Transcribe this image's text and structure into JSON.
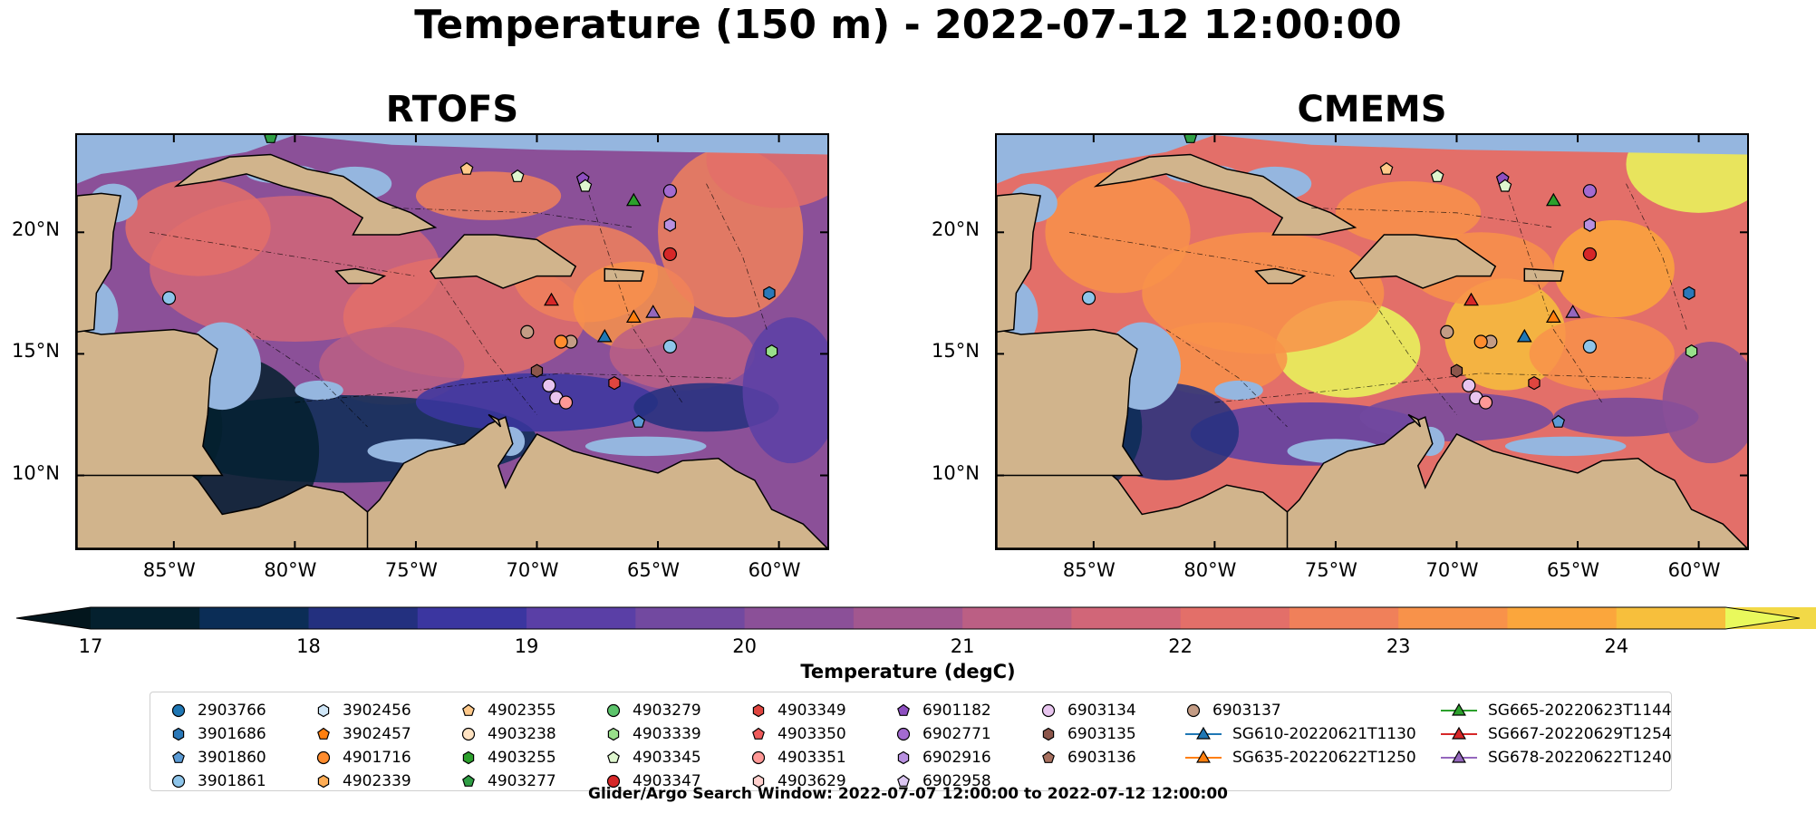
{
  "title": "Temperature (150 m) - 2022-07-12 12:00:00",
  "chart_data": [
    {
      "type": "heatmap",
      "panel_title": "RTOFS",
      "variable": "Temperature",
      "depth": "150 m",
      "xlim": [
        -89,
        -58
      ],
      "ylim": [
        7,
        24
      ],
      "xticks": [
        "85°W",
        "80°W",
        "75°W",
        "70°W",
        "65°W",
        "60°W"
      ],
      "yticks": [
        "20°N",
        "15°N",
        "10°N"
      ],
      "field_summary": "cooler (17-18 degC) in southern Caribbean along Venezuela/Colombia coast and NW Caribbean; 21-23 degC in northern and eastern basin",
      "markers": [
        {
          "id": "3901861",
          "lon": -85.2,
          "lat": 17.3
        },
        {
          "id": "6903137",
          "lon": -70.4,
          "lat": 15.9
        },
        {
          "id": "6903137",
          "lon": -68.6,
          "lat": 15.5
        },
        {
          "id": "4901716",
          "lon": -69.0,
          "lat": 15.5
        },
        {
          "id": "6903135",
          "lon": -70.0,
          "lat": 14.3
        },
        {
          "id": "6903134",
          "lon": -69.5,
          "lat": 13.7
        },
        {
          "id": "6903134",
          "lon": -69.2,
          "lat": 13.2
        },
        {
          "id": "4903351",
          "lon": -68.8,
          "lat": 13.0
        },
        {
          "id": "4903349",
          "lon": -66.8,
          "lat": 13.8
        },
        {
          "id": "3901860",
          "lon": -65.8,
          "lat": 12.2
        },
        {
          "id": "4903347",
          "lon": -64.5,
          "lat": 19.1
        },
        {
          "id": "6902771",
          "lon": -64.5,
          "lat": 21.7
        },
        {
          "id": "6902916",
          "lon": -64.5,
          "lat": 20.3
        },
        {
          "id": "3901861",
          "lon": -64.5,
          "lat": 15.3
        },
        {
          "id": "3901686",
          "lon": -60.4,
          "lat": 17.5
        },
        {
          "id": "4903339",
          "lon": -60.3,
          "lat": 15.1
        },
        {
          "id": "6901182",
          "lon": -68.1,
          "lat": 22.2
        },
        {
          "id": "4903345",
          "lon": -68.0,
          "lat": 21.9
        },
        {
          "id": "4902355",
          "lon": -72.9,
          "lat": 22.6
        },
        {
          "id": "4903345",
          "lon": -70.8,
          "lat": 22.3
        },
        {
          "id": "4903277",
          "lon": -81.0,
          "lat": 23.9
        },
        {
          "id": "SG665-20220623T1144",
          "lon": -66.0,
          "lat": 21.3
        },
        {
          "id": "SG667-20220629T1254",
          "lon": -69.4,
          "lat": 17.2
        },
        {
          "id": "SG610-20220621T1130",
          "lon": -67.2,
          "lat": 15.7
        },
        {
          "id": "SG635-20220622T1250",
          "lon": -66.0,
          "lat": 16.5
        },
        {
          "id": "SG678-20220622T1240",
          "lon": -65.2,
          "lat": 16.7
        }
      ]
    },
    {
      "type": "heatmap",
      "panel_title": "CMEMS",
      "variable": "Temperature",
      "depth": "150 m",
      "xlim": [
        -89,
        -58
      ],
      "ylim": [
        7,
        24
      ],
      "xticks": [
        "85°W",
        "80°W",
        "75°W",
        "70°W",
        "65°W",
        "60°W"
      ],
      "yticks": [
        "20°N",
        "15°N",
        "10°N"
      ],
      "field_summary": "warmer overall: 22-24+ degC across central and northern basin with >24 degC cells near 72W 15N and 58W 22N; 17-19 degC band along South American coast",
      "markers": [
        {
          "id": "3901861",
          "lon": -85.2,
          "lat": 17.3
        },
        {
          "id": "6903137",
          "lon": -70.4,
          "lat": 15.9
        },
        {
          "id": "6903137",
          "lon": -68.6,
          "lat": 15.5
        },
        {
          "id": "4901716",
          "lon": -69.0,
          "lat": 15.5
        },
        {
          "id": "6903135",
          "lon": -70.0,
          "lat": 14.3
        },
        {
          "id": "6903134",
          "lon": -69.5,
          "lat": 13.7
        },
        {
          "id": "6903134",
          "lon": -69.2,
          "lat": 13.2
        },
        {
          "id": "4903351",
          "lon": -68.8,
          "lat": 13.0
        },
        {
          "id": "4903349",
          "lon": -66.8,
          "lat": 13.8
        },
        {
          "id": "3901860",
          "lon": -65.8,
          "lat": 12.2
        },
        {
          "id": "4903347",
          "lon": -64.5,
          "lat": 19.1
        },
        {
          "id": "6902771",
          "lon": -64.5,
          "lat": 21.7
        },
        {
          "id": "6902916",
          "lon": -64.5,
          "lat": 20.3
        },
        {
          "id": "3901861",
          "lon": -64.5,
          "lat": 15.3
        },
        {
          "id": "3901686",
          "lon": -60.4,
          "lat": 17.5
        },
        {
          "id": "4903339",
          "lon": -60.3,
          "lat": 15.1
        },
        {
          "id": "6901182",
          "lon": -68.1,
          "lat": 22.2
        },
        {
          "id": "4903345",
          "lon": -68.0,
          "lat": 21.9
        },
        {
          "id": "4902355",
          "lon": -72.9,
          "lat": 22.6
        },
        {
          "id": "4903345",
          "lon": -70.8,
          "lat": 22.3
        },
        {
          "id": "4903277",
          "lon": -81.0,
          "lat": 23.9
        },
        {
          "id": "SG665-20220623T1144",
          "lon": -66.0,
          "lat": 21.3
        },
        {
          "id": "SG667-20220629T1254",
          "lon": -69.4,
          "lat": 17.2
        },
        {
          "id": "SG610-20220621T1130",
          "lon": -67.2,
          "lat": 15.7
        },
        {
          "id": "SG635-20220622T1250",
          "lon": -66.0,
          "lat": 16.5
        },
        {
          "id": "SG678-20220622T1240",
          "lon": -65.2,
          "lat": 16.7
        }
      ]
    }
  ],
  "colorbar": {
    "label": "Temperature (degC)",
    "min": 17,
    "max": 24.5,
    "step": 0.5,
    "ticks": [
      17,
      18,
      19,
      20,
      21,
      22,
      23,
      24
    ],
    "extend": "both",
    "colormap": "thermal",
    "colors": [
      "#04202e",
      "#0b2d56",
      "#23307f",
      "#3b36a0",
      "#5a3fa6",
      "#7249a0",
      "#8b5098",
      "#a2578f",
      "#bb5f84",
      "#d16678",
      "#e36f69",
      "#f0805a",
      "#f8924a",
      "#fba63c",
      "#f7bf3c",
      "#f2d947"
    ],
    "under_color": "#03161d",
    "over_color": "#e9f95c"
  },
  "legend": {
    "columns": [
      [
        {
          "label": "2903766",
          "marker": "circle",
          "color": "#1f77b4"
        },
        {
          "label": "3901686",
          "marker": "hexagon",
          "color": "#2a78b8"
        },
        {
          "label": "3901860",
          "marker": "pentagon",
          "color": "#5b9bd5"
        },
        {
          "label": "3901861",
          "marker": "circle",
          "color": "#8ec5ea"
        }
      ],
      [
        {
          "label": "3902456",
          "marker": "hexagon",
          "color": "#cfe6f7"
        },
        {
          "label": "3902457",
          "marker": "pentagon",
          "color": "#ff7f0e"
        },
        {
          "label": "4901716",
          "marker": "circle",
          "color": "#ff8c2e"
        },
        {
          "label": "4902339",
          "marker": "hexagon",
          "color": "#ffad55"
        }
      ],
      [
        {
          "label": "4902355",
          "marker": "pentagon",
          "color": "#ffc98a"
        },
        {
          "label": "4903238",
          "marker": "circle",
          "color": "#ffe3c2"
        },
        {
          "label": "4903255",
          "marker": "hexagon",
          "color": "#2ca02c"
        },
        {
          "label": "4903277",
          "marker": "pentagon",
          "color": "#2f9e44"
        }
      ],
      [
        {
          "label": "4903279",
          "marker": "circle",
          "color": "#5cc46b"
        },
        {
          "label": "4903339",
          "marker": "hexagon",
          "color": "#98df8a"
        },
        {
          "label": "4903345",
          "marker": "pentagon",
          "color": "#dff7cf"
        },
        {
          "label": "4903347",
          "marker": "circle",
          "color": "#d62728"
        }
      ],
      [
        {
          "label": "4903349",
          "marker": "hexagon",
          "color": "#e0453f"
        },
        {
          "label": "4903350",
          "marker": "pentagon",
          "color": "#ef5b5b"
        },
        {
          "label": "4903351",
          "marker": "circle",
          "color": "#ff9896"
        },
        {
          "label": "4903629",
          "marker": "hexagon",
          "color": "#ffd0cd"
        }
      ],
      [
        {
          "label": "6901182",
          "marker": "pentagon",
          "color": "#8e4fc1"
        },
        {
          "label": "6902771",
          "marker": "circle",
          "color": "#a36ad0"
        },
        {
          "label": "6902916",
          "marker": "hexagon",
          "color": "#b890e0"
        },
        {
          "label": "6902958",
          "marker": "pentagon",
          "color": "#dcc7f2"
        }
      ],
      [
        {
          "label": "6903134",
          "marker": "circle",
          "color": "#e8c5ef"
        },
        {
          "label": "6903135",
          "marker": "hexagon",
          "color": "#8c564b"
        },
        {
          "label": "6903136",
          "marker": "pentagon",
          "color": "#a8705f"
        }
      ],
      [
        {
          "label": "6903137",
          "marker": "circle",
          "color": "#c49c85"
        },
        {
          "label": "SG610-20220621T1130",
          "marker": "triangle-line",
          "color": "#1f77b4"
        },
        {
          "label": "SG635-20220622T1250",
          "marker": "triangle-line",
          "color": "#ff7f0e"
        }
      ],
      [
        {
          "label": "SG665-20220623T1144",
          "marker": "triangle-line",
          "color": "#2ca02c"
        },
        {
          "label": "SG667-20220629T1254",
          "marker": "triangle-line",
          "color": "#d62728"
        },
        {
          "label": "SG678-20220622T1240",
          "marker": "triangle-line",
          "color": "#9467bd"
        }
      ]
    ]
  },
  "search_window_note": "Glider/Argo Search Window: 2022-07-07 12:00:00 to 2022-07-12 12:00:00"
}
